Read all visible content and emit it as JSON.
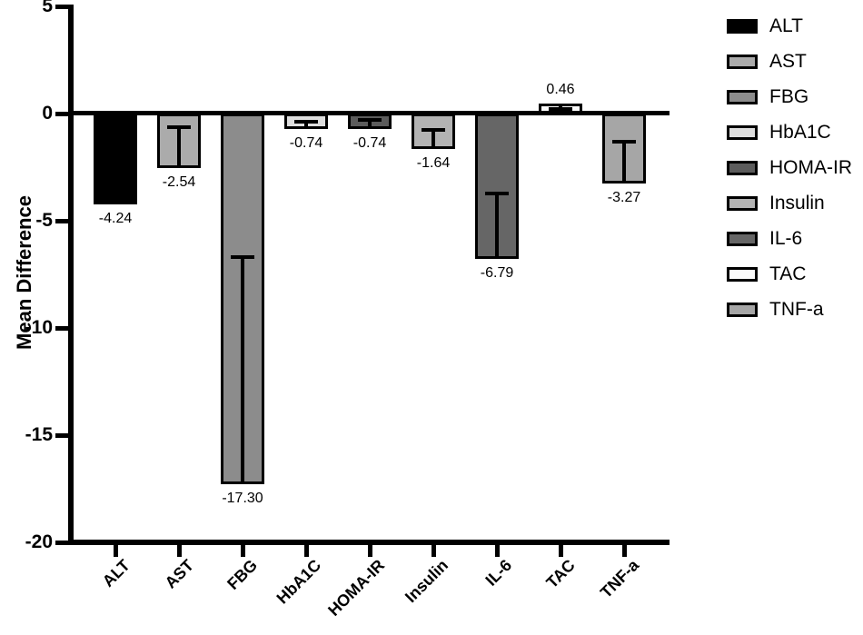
{
  "figure": {
    "background": "#ffffff",
    "axis_color": "#000000"
  },
  "chart_data": {
    "type": "bar",
    "title": "",
    "xlabel": "",
    "ylabel": "Mean Difference",
    "ylim": [
      -20,
      5
    ],
    "y_ticks": [
      5,
      0,
      -5,
      -10,
      -15,
      -20
    ],
    "grid": false,
    "legend_position": "right",
    "categories": [
      "ALT",
      "AST",
      "FBG",
      "HbA1C",
      "HOMA-IR",
      "Insulin",
      "IL-6",
      "TAC",
      "TNF-a"
    ],
    "values": [
      -4.24,
      -2.54,
      -17.3,
      -0.74,
      -0.74,
      -1.64,
      -6.79,
      0.46,
      -3.27
    ],
    "value_labels": [
      "-4.24",
      "-2.54",
      "-17.30",
      "-0.74",
      "-0.74",
      "-1.64",
      "-6.79",
      "0.46",
      "-3.27"
    ],
    "error_caps": [
      null,
      -0.64,
      -6.7,
      -0.38,
      -0.3,
      -0.76,
      -3.73,
      0.22,
      -1.31
    ],
    "bar_colors": [
      "#000000",
      "#ababab",
      "#8c8c8c",
      "#dedede",
      "#5c5c5c",
      "#b3b3b3",
      "#666666",
      "#fbfbfb",
      "#a6a6a6"
    ],
    "bar_border_color": "#000000",
    "legend_labels": [
      "ALT",
      "AST",
      "FBG",
      "HbA1C",
      "HOMA-IR",
      "Insulin",
      "IL-6",
      "TAC",
      "TNF-a"
    ]
  }
}
